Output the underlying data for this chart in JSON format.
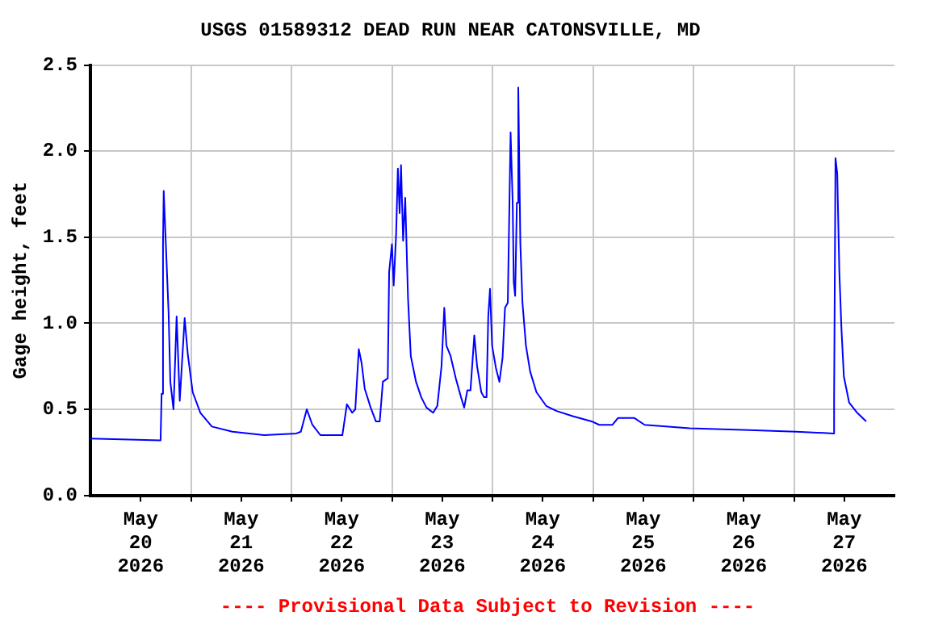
{
  "chart_data": {
    "type": "line",
    "title": "USGS 01589312 DEAD RUN NEAR CATONSVILLE, MD",
    "ylabel": "Gage height, feet",
    "annotations": [
      "---- Provisional Data Subject to Revision ----"
    ],
    "x": [
      "2026-05-20T00:00",
      "2026-05-20T16:45",
      "2026-05-20T17:00",
      "2026-05-20T17:20",
      "2026-05-20T17:30",
      "2026-05-20T18:40",
      "2026-05-20T19:05",
      "2026-05-20T19:50",
      "2026-05-20T20:35",
      "2026-05-20T21:20",
      "2026-05-20T22:30",
      "2026-05-20T23:15",
      "2026-05-21T00:25",
      "2026-05-21T02:15",
      "2026-05-21T05:00",
      "2026-05-21T09:55",
      "2026-05-21T17:30",
      "2026-05-22T01:10",
      "2026-05-22T02:15",
      "2026-05-22T03:40",
      "2026-05-22T05:00",
      "2026-05-22T06:55",
      "2026-05-22T12:10",
      "2026-05-22T13:15",
      "2026-05-22T14:30",
      "2026-05-22T15:15",
      "2026-05-22T16:05",
      "2026-05-22T16:45",
      "2026-05-22T17:30",
      "2026-05-22T18:55",
      "2026-05-22T20:10",
      "2026-05-22T21:05",
      "2026-05-22T21:50",
      "2026-05-22T23:00",
      "2026-05-22T23:20",
      "2026-05-23T00:00",
      "2026-05-23T00:25",
      "2026-05-23T01:00",
      "2026-05-23T01:25",
      "2026-05-23T01:50",
      "2026-05-23T02:10",
      "2026-05-23T02:40",
      "2026-05-23T03:10",
      "2026-05-23T03:50",
      "2026-05-23T04:30",
      "2026-05-23T05:45",
      "2026-05-23T07:00",
      "2026-05-23T08:15",
      "2026-05-23T09:50",
      "2026-05-23T10:50",
      "2026-05-23T11:50",
      "2026-05-23T12:30",
      "2026-05-23T13:00",
      "2026-05-23T14:00",
      "2026-05-23T15:15",
      "2026-05-23T16:30",
      "2026-05-23T17:15",
      "2026-05-23T18:00",
      "2026-05-23T18:45",
      "2026-05-23T19:40",
      "2026-05-23T20:20",
      "2026-05-23T21:20",
      "2026-05-23T22:00",
      "2026-05-23T22:35",
      "2026-05-23T23:00",
      "2026-05-23T23:25",
      "2026-05-23T23:55",
      "2026-05-24T00:50",
      "2026-05-24T01:40",
      "2026-05-24T02:25",
      "2026-05-24T03:00",
      "2026-05-24T03:40",
      "2026-05-24T04:20",
      "2026-05-24T04:50",
      "2026-05-24T05:05",
      "2026-05-24T05:25",
      "2026-05-24T05:50",
      "2026-05-24T06:10",
      "2026-05-24T06:40",
      "2026-05-24T07:10",
      "2026-05-24T08:00",
      "2026-05-24T09:00",
      "2026-05-24T10:30",
      "2026-05-24T12:50",
      "2026-05-24T15:20",
      "2026-05-24T19:10",
      "2026-05-24T23:40",
      "2026-05-25T01:30",
      "2026-05-25T04:40",
      "2026-05-25T06:00",
      "2026-05-25T09:50",
      "2026-05-25T12:20",
      "2026-05-25T23:05",
      "2026-05-26T11:50",
      "2026-05-27T00:30",
      "2026-05-27T09:25",
      "2026-05-27T09:35",
      "2026-05-27T09:55",
      "2026-05-27T10:20",
      "2026-05-27T10:50",
      "2026-05-27T11:20",
      "2026-05-27T11:55",
      "2026-05-27T13:10",
      "2026-05-27T15:05",
      "2026-05-27T17:15"
    ],
    "series": [
      {
        "color": "#0000ff",
        "values": [
          0.33,
          0.32,
          0.59,
          1.46,
          1.77,
          1.06,
          0.66,
          0.5,
          1.04,
          0.55,
          1.03,
          0.82,
          0.6,
          0.48,
          0.4,
          0.37,
          0.35,
          0.36,
          0.37,
          0.5,
          0.41,
          0.35,
          0.35,
          0.53,
          0.48,
          0.5,
          0.85,
          0.77,
          0.62,
          0.51,
          0.43,
          0.43,
          0.66,
          0.68,
          1.3,
          1.46,
          1.22,
          1.52,
          1.9,
          1.64,
          1.92,
          1.48,
          1.73,
          1.15,
          0.81,
          0.66,
          0.57,
          0.51,
          0.48,
          0.52,
          0.75,
          1.09,
          0.87,
          0.81,
          0.68,
          0.57,
          0.51,
          0.61,
          0.61,
          0.93,
          0.75,
          0.6,
          0.57,
          0.57,
          1.04,
          1.2,
          0.87,
          0.74,
          0.66,
          0.8,
          1.09,
          1.12,
          2.11,
          1.7,
          1.24,
          1.16,
          1.7,
          2.37,
          1.46,
          1.12,
          0.87,
          0.72,
          0.6,
          0.52,
          0.49,
          0.46,
          0.43,
          0.41,
          0.41,
          0.45,
          0.45,
          0.41,
          0.39,
          0.38,
          0.37,
          0.36,
          0.57,
          1.96,
          1.87,
          1.3,
          0.97,
          0.69,
          0.54,
          0.48,
          0.43
        ]
      }
    ],
    "xlim": [
      "2026-05-20T00:00",
      "2026-05-28T00:00"
    ],
    "xticks": [
      {
        "value": "2026-05-20T12:00",
        "label": "May\n20\n2026"
      },
      {
        "value": "2026-05-21T00:00",
        "label": null
      },
      {
        "value": "2026-05-21T12:00",
        "label": "May\n21\n2026"
      },
      {
        "value": "2026-05-22T00:00",
        "label": null
      },
      {
        "value": "2026-05-22T12:00",
        "label": "May\n22\n2026"
      },
      {
        "value": "2026-05-23T00:00",
        "label": null
      },
      {
        "value": "2026-05-23T12:00",
        "label": "May\n23\n2026"
      },
      {
        "value": "2026-05-24T00:00",
        "label": null
      },
      {
        "value": "2026-05-24T12:00",
        "label": "May\n24\n2026"
      },
      {
        "value": "2026-05-25T00:00",
        "label": null
      },
      {
        "value": "2026-05-25T12:00",
        "label": "May\n25\n2026"
      },
      {
        "value": "2026-05-26T00:00",
        "label": null
      },
      {
        "value": "2026-05-26T12:00",
        "label": "May\n26\n2026"
      },
      {
        "value": "2026-05-27T00:00",
        "label": null
      },
      {
        "value": "2026-05-27T12:00",
        "label": "May\n27\n2026"
      }
    ],
    "ylim": [
      0,
      2.5
    ],
    "yticks": [
      {
        "value": 0,
        "label": "0.0"
      },
      {
        "value": 0.5,
        "label": "0.5"
      },
      {
        "value": 1,
        "label": "1.0"
      },
      {
        "value": 1.5,
        "label": "1.5"
      },
      {
        "value": 2,
        "label": "2.0"
      },
      {
        "value": 2.5,
        "label": "2.5"
      }
    ],
    "grid": true,
    "legend": false,
    "marker": "none",
    "line_style": "solid"
  }
}
